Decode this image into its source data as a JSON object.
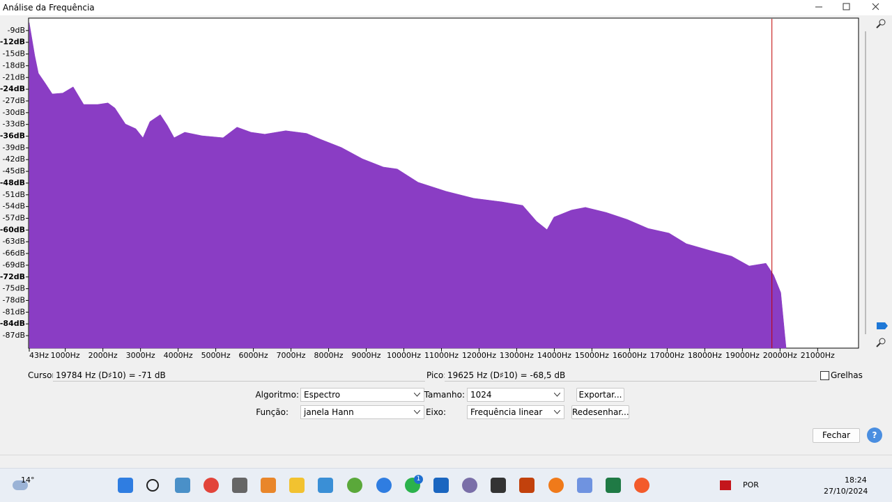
{
  "window": {
    "title": "Análise da Frequência"
  },
  "chart_data": {
    "type": "area",
    "color": "#8a3dc4",
    "xlim": [
      43,
      22050
    ],
    "ylim": [
      -90.2,
      -6
    ],
    "x": [
      43,
      190,
      285,
      470,
      655,
      930,
      1210,
      1490,
      1860,
      2135,
      2320,
      2600,
      2875,
      3065,
      3250,
      3525,
      3710,
      3895,
      4175,
      4635,
      5195,
      5565,
      5935,
      6305,
      6860,
      7415,
      7785,
      8340,
      8900,
      9455,
      9825,
      10380,
      11120,
      11860,
      12605,
      13160,
      13530,
      13805,
      13990,
      14455,
      14825,
      15380,
      15940,
      16495,
      17050,
      17510,
      18160,
      18715,
      19180,
      19625,
      19830,
      20020,
      20125,
      20160
    ],
    "values": [
      -7,
      -15.4,
      -19.9,
      -22.5,
      -25.2,
      -25,
      -23.4,
      -27.9,
      -27.9,
      -27.5,
      -28.8,
      -32.9,
      -34.1,
      -36.4,
      -32.3,
      -30.5,
      -33.2,
      -36.4,
      -35,
      -35.9,
      -36.4,
      -33.7,
      -35,
      -35.5,
      -34.6,
      -35.3,
      -36.8,
      -38.9,
      -41.8,
      -43.9,
      -44.4,
      -47.8,
      -50.1,
      -51.9,
      -52.8,
      -53.7,
      -57.8,
      -59.9,
      -56.7,
      -54.9,
      -54.2,
      -55.5,
      -57.3,
      -59.6,
      -60.8,
      -63.5,
      -65.3,
      -66.7,
      -69.2,
      -68.5,
      -71.5,
      -76,
      -86.6,
      -90
    ],
    "cursor_x": 19784,
    "cursor_color": "#c00000",
    "xticks": [
      {
        "value": 43,
        "label": "43Hz"
      },
      {
        "value": 1000,
        "label": "1000Hz"
      },
      {
        "value": 2000,
        "label": "2000Hz"
      },
      {
        "value": 3000,
        "label": "3000Hz"
      },
      {
        "value": 4000,
        "label": "4000Hz"
      },
      {
        "value": 5000,
        "label": "5000Hz"
      },
      {
        "value": 6000,
        "label": "6000Hz"
      },
      {
        "value": 7000,
        "label": "7000Hz"
      },
      {
        "value": 8000,
        "label": "8000Hz"
      },
      {
        "value": 9000,
        "label": "9000Hz"
      },
      {
        "value": 10000,
        "label": "10000Hz"
      },
      {
        "value": 11000,
        "label": "11000Hz"
      },
      {
        "value": 12000,
        "label": "12000Hz"
      },
      {
        "value": 13000,
        "label": "13000Hz"
      },
      {
        "value": 14000,
        "label": "14000Hz"
      },
      {
        "value": 15000,
        "label": "15000Hz"
      },
      {
        "value": 16000,
        "label": "16000Hz"
      },
      {
        "value": 17000,
        "label": "17000Hz"
      },
      {
        "value": 18000,
        "label": "18000Hz"
      },
      {
        "value": 19000,
        "label": "19000Hz"
      },
      {
        "value": 20000,
        "label": "20000Hz"
      },
      {
        "value": 21000,
        "label": "21000Hz"
      }
    ],
    "yticks": [
      {
        "value": -9,
        "label": "-9dB"
      },
      {
        "value": -12,
        "label": "-12dB"
      },
      {
        "value": -15,
        "label": "-15dB"
      },
      {
        "value": -18,
        "label": "-18dB"
      },
      {
        "value": -21,
        "label": "-21dB"
      },
      {
        "value": -24,
        "label": "-24dB"
      },
      {
        "value": -27,
        "label": "-27dB"
      },
      {
        "value": -30,
        "label": "-30dB"
      },
      {
        "value": -33,
        "label": "-33dB"
      },
      {
        "value": -36,
        "label": "-36dB"
      },
      {
        "value": -39,
        "label": "-39dB"
      },
      {
        "value": -42,
        "label": "-42dB"
      },
      {
        "value": -45,
        "label": "-45dB"
      },
      {
        "value": -48,
        "label": "-48dB"
      },
      {
        "value": -51,
        "label": "-51dB"
      },
      {
        "value": -54,
        "label": "-54dB"
      },
      {
        "value": -57,
        "label": "-57dB"
      },
      {
        "value": -60,
        "label": "-60dB"
      },
      {
        "value": -63,
        "label": "-63dB"
      },
      {
        "value": -66,
        "label": "-66dB"
      },
      {
        "value": -69,
        "label": "-69dB"
      },
      {
        "value": -72,
        "label": "-72dB"
      },
      {
        "value": -75,
        "label": "-75dB"
      },
      {
        "value": -78,
        "label": "-78dB"
      },
      {
        "value": -81,
        "label": "-81dB"
      },
      {
        "value": -84,
        "label": "-84dB"
      },
      {
        "value": -87,
        "label": "-87dB"
      }
    ]
  },
  "readout": {
    "cursor_label": "Cursor:",
    "cursor_value": "19784 Hz (D♯10) = -71 dB",
    "peak_label": "Pico:",
    "peak_value": "19625 Hz (D♯10) = -68,5 dB",
    "grid_label": "Grelhas"
  },
  "controls": {
    "algorithm_label": "Algoritmo:",
    "algorithm": "Espectro",
    "size_label": "Tamanho:",
    "size": "1024",
    "export": "Exportar...",
    "function_label": "Função:",
    "function": "janela Hann",
    "axis_label": "Eixo:",
    "axis": "Frequência linear",
    "redraw": "Redesenhar...",
    "close": "Fechar"
  },
  "taskbar": {
    "weather": "14°",
    "badge": "1",
    "language": "POR",
    "time": "18:24",
    "date": "27/10/2024"
  }
}
